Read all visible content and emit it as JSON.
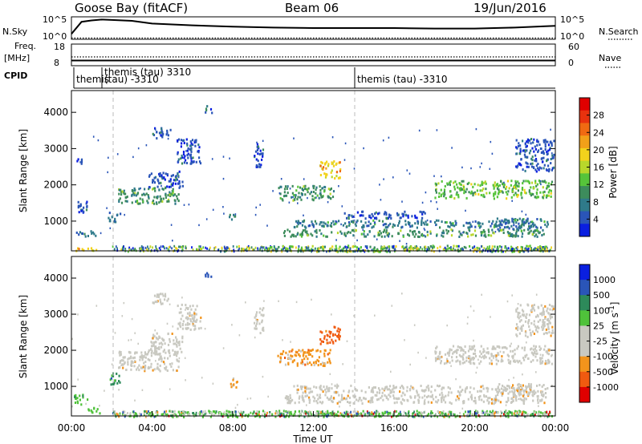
{
  "header": {
    "station": "Goose Bay (fitACF)",
    "beam": "Beam 06",
    "date": "19/Jun/2016"
  },
  "top_panels": {
    "nsky_label": "N.Sky",
    "nsky_ticks": [
      "10^5",
      "10^0"
    ],
    "nsearch_label": "N.Search",
    "nsearch_ticks": [
      "10^5",
      "10^0"
    ],
    "freq_label_1": "Freq.",
    "freq_label_2": "[MHz]",
    "freq_ticks": [
      "18",
      "8"
    ],
    "nave_label": "Nave",
    "nave_ticks": [
      "60",
      "0"
    ],
    "cpid_label": "CPID",
    "cpid_segments": [
      {
        "label": "themis",
        "start_h": 0.0,
        "end_h": 1.95
      },
      {
        "label": "themis (tau) 3310",
        "start_h": 1.95,
        "end_h": 2.05
      },
      {
        "label": "(tau) -3310",
        "start_h": 1.95,
        "end_h": 14.1
      },
      {
        "label": "themis (tau) -3310",
        "start_h": 14.1,
        "end_h": 24.0
      }
    ]
  },
  "colors": {
    "power_scale": [
      "#0a1fe0",
      "#2a55b8",
      "#2f7a8a",
      "#3d8c5c",
      "#56c43a",
      "#b8d72b",
      "#f2d21c",
      "#f2a019",
      "#f06a12",
      "#e8320e",
      "#e00000"
    ],
    "velocity_scale": [
      "#e00000",
      "#f05a10",
      "#f2941c",
      "#c9c9c1",
      "#c9c9c1",
      "#4fc23a",
      "#2d8a5a",
      "#2a55b8",
      "#0a1fe0"
    ]
  },
  "power_colorbar": {
    "label": "Power [dB]",
    "ticks": [
      "28",
      "24",
      "20",
      "16",
      "12",
      "8",
      "4"
    ]
  },
  "velocity_colorbar": {
    "label": "Velocity [m s",
    "label_sup": "-1",
    "label_end": "]",
    "ticks": [
      "1000",
      "500",
      "100",
      "25",
      "-25",
      "-100",
      "-500",
      "-1000"
    ]
  },
  "chart_data": [
    {
      "type": "line",
      "series": [
        {
          "name": "N.Sky",
          "x_hours": [
            0,
            0.5,
            1,
            1.5,
            2,
            3,
            4,
            6,
            8,
            10,
            12,
            14,
            16,
            18,
            20,
            22,
            23.5,
            24
          ],
          "y_log10": [
            1.2,
            3.9,
            4.2,
            4.4,
            4.3,
            4.1,
            3.5,
            3.1,
            2.8,
            2.6,
            2.5,
            2.5,
            2.5,
            2.4,
            2.4,
            2.6,
            2.9,
            3.0
          ]
        }
      ],
      "x_range_hours": [
        0,
        24
      ],
      "y_range_log10": [
        0,
        5
      ]
    },
    {
      "type": "line",
      "series": [
        {
          "name": "Freq.",
          "x_hours": [
            0,
            24
          ],
          "y": [
            10.4,
            10.4
          ]
        }
      ],
      "x_range_hours": [
        0,
        24
      ],
      "ylim": [
        8,
        18
      ]
    },
    {
      "type": "heatmap",
      "xlabel": "Time UT",
      "ylabel": "Slant Range [km]",
      "x_ticks": [
        "00:00",
        "04:00",
        "08:00",
        "12:00",
        "16:00",
        "20:00",
        "00:00"
      ],
      "y_ticks": [
        "1000",
        "2000",
        "3000",
        "4000"
      ],
      "xlim_hours": [
        0,
        24
      ],
      "ylim_km": [
        180,
        4600
      ],
      "colorbar": "Power [dB]",
      "patches": [
        {
          "t0": 0.0,
          "t1": 1.2,
          "r0": 200,
          "r1": 300,
          "c": 6
        },
        {
          "t0": 0.2,
          "t1": 1.3,
          "r0": 600,
          "r1": 750,
          "c": 2
        },
        {
          "t0": 0.3,
          "t1": 0.8,
          "r0": 1250,
          "r1": 1700,
          "c": 1
        },
        {
          "t0": 0.2,
          "t1": 0.6,
          "r0": 2600,
          "r1": 2800,
          "c": 1
        },
        {
          "t0": 1.8,
          "t1": 2.4,
          "r0": 1000,
          "r1": 1300,
          "c": 2
        },
        {
          "t0": 2.3,
          "t1": 5.3,
          "r0": 1500,
          "r1": 1950,
          "c": 3
        },
        {
          "t0": 3.8,
          "t1": 5.5,
          "r0": 1950,
          "r1": 2400,
          "c": 1
        },
        {
          "t0": 5.2,
          "t1": 6.4,
          "r0": 2600,
          "r1": 3300,
          "c": 1
        },
        {
          "t0": 4.0,
          "t1": 4.9,
          "r0": 3300,
          "r1": 3600,
          "c": 1
        },
        {
          "t0": 6.6,
          "t1": 7.0,
          "r0": 4000,
          "r1": 4200,
          "c": 1
        },
        {
          "t0": 7.8,
          "t1": 8.1,
          "r0": 1050,
          "r1": 1250,
          "c": 3
        },
        {
          "t0": 9.0,
          "t1": 9.5,
          "r0": 2500,
          "r1": 3200,
          "c": 1
        },
        {
          "t0": 10.2,
          "t1": 13.0,
          "r0": 1600,
          "r1": 2000,
          "c": 3
        },
        {
          "t0": 11.0,
          "t1": 23.0,
          "r0": 850,
          "r1": 1050,
          "c": 2
        },
        {
          "t0": 10.5,
          "t1": 23.5,
          "r0": 600,
          "r1": 800,
          "c": 3
        },
        {
          "t0": 9.5,
          "t1": 23.8,
          "r0": 180,
          "r1": 350,
          "c": 4
        },
        {
          "t0": 12.3,
          "t1": 13.3,
          "r0": 2200,
          "r1": 2700,
          "c": 6
        },
        {
          "t0": 18.0,
          "t1": 23.8,
          "r0": 1650,
          "r1": 2150,
          "c": 4
        },
        {
          "t0": 21.0,
          "t1": 23.6,
          "r0": 800,
          "r1": 1100,
          "c": 2
        },
        {
          "t0": 22.0,
          "t1": 23.9,
          "r0": 2400,
          "r1": 3300,
          "c": 1
        },
        {
          "t0": 13.5,
          "t1": 17.5,
          "r0": 1100,
          "r1": 1300,
          "c": 1
        }
      ]
    },
    {
      "type": "heatmap",
      "xlabel": "Time UT",
      "ylabel": "Slant Range [km]",
      "x_ticks": [
        "00:00",
        "04:00",
        "08:00",
        "12:00",
        "16:00",
        "20:00",
        "00:00"
      ],
      "y_ticks": [
        "1000",
        "2000",
        "3000",
        "4000"
      ],
      "xlim_hours": [
        0,
        24
      ],
      "ylim_km": [
        180,
        4600
      ],
      "colorbar": "Velocity [m s-1]",
      "patches": [
        {
          "t0": 0.1,
          "t1": 0.8,
          "r0": 500,
          "r1": 800,
          "c": 5
        },
        {
          "t0": 0.8,
          "t1": 1.4,
          "r0": 250,
          "r1": 450,
          "c": 5
        },
        {
          "t0": 1.8,
          "t1": 2.4,
          "r0": 1050,
          "r1": 1400,
          "c": 6
        },
        {
          "t0": 2.3,
          "t1": 5.3,
          "r0": 1450,
          "r1": 2000,
          "c": 3
        },
        {
          "t0": 3.8,
          "t1": 5.5,
          "r0": 1950,
          "r1": 2500,
          "c": 3
        },
        {
          "t0": 5.2,
          "t1": 6.4,
          "r0": 2600,
          "r1": 3300,
          "c": 3
        },
        {
          "t0": 4.0,
          "t1": 4.9,
          "r0": 3300,
          "r1": 3600,
          "c": 3
        },
        {
          "t0": 7.8,
          "t1": 8.2,
          "r0": 1000,
          "r1": 1300,
          "c": 2
        },
        {
          "t0": 9.0,
          "t1": 9.5,
          "r0": 2500,
          "r1": 3200,
          "c": 3
        },
        {
          "t0": 10.2,
          "t1": 12.8,
          "r0": 1600,
          "r1": 2050,
          "c": 2
        },
        {
          "t0": 12.3,
          "t1": 13.3,
          "r0": 2200,
          "r1": 2700,
          "c": 1
        },
        {
          "t0": 11.0,
          "t1": 23.0,
          "r0": 850,
          "r1": 1050,
          "c": 3
        },
        {
          "t0": 10.5,
          "t1": 23.5,
          "r0": 550,
          "r1": 800,
          "c": 3
        },
        {
          "t0": 3.0,
          "t1": 23.8,
          "r0": 180,
          "r1": 350,
          "c": 5
        },
        {
          "t0": 18.0,
          "t1": 23.8,
          "r0": 1650,
          "r1": 2150,
          "c": 3
        },
        {
          "t0": 21.0,
          "t1": 23.6,
          "r0": 750,
          "r1": 1100,
          "c": 3
        },
        {
          "t0": 22.0,
          "t1": 23.9,
          "r0": 2400,
          "r1": 3300,
          "c": 3
        },
        {
          "t0": 6.6,
          "t1": 7.0,
          "r0": 4000,
          "r1": 4200,
          "c": 7
        }
      ]
    }
  ]
}
